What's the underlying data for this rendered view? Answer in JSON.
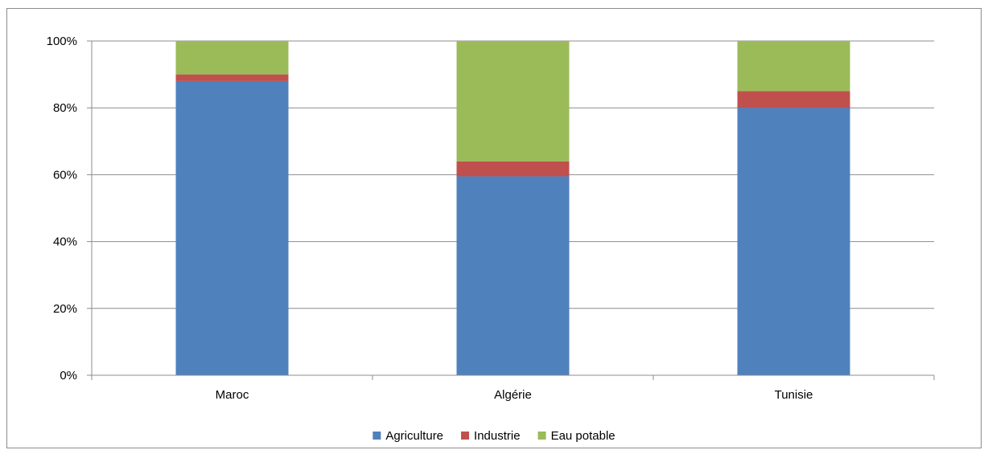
{
  "chart_data": {
    "type": "bar",
    "stacked": true,
    "percent": true,
    "categories": [
      "Maroc",
      "Algérie",
      "Tunisie"
    ],
    "series": [
      {
        "name": "Agriculture",
        "color": "#4f81bd",
        "values": [
          88,
          59.5,
          80
        ]
      },
      {
        "name": "Industrie",
        "color": "#c0504d",
        "values": [
          2,
          4.5,
          5
        ]
      },
      {
        "name": "Eau potable",
        "color": "#9bbb59",
        "values": [
          10,
          36,
          15
        ]
      }
    ],
    "y_ticks": [
      "0%",
      "20%",
      "40%",
      "60%",
      "80%",
      "100%"
    ],
    "ylim": [
      0,
      100
    ],
    "grid": true,
    "legend_position": "bottom"
  }
}
